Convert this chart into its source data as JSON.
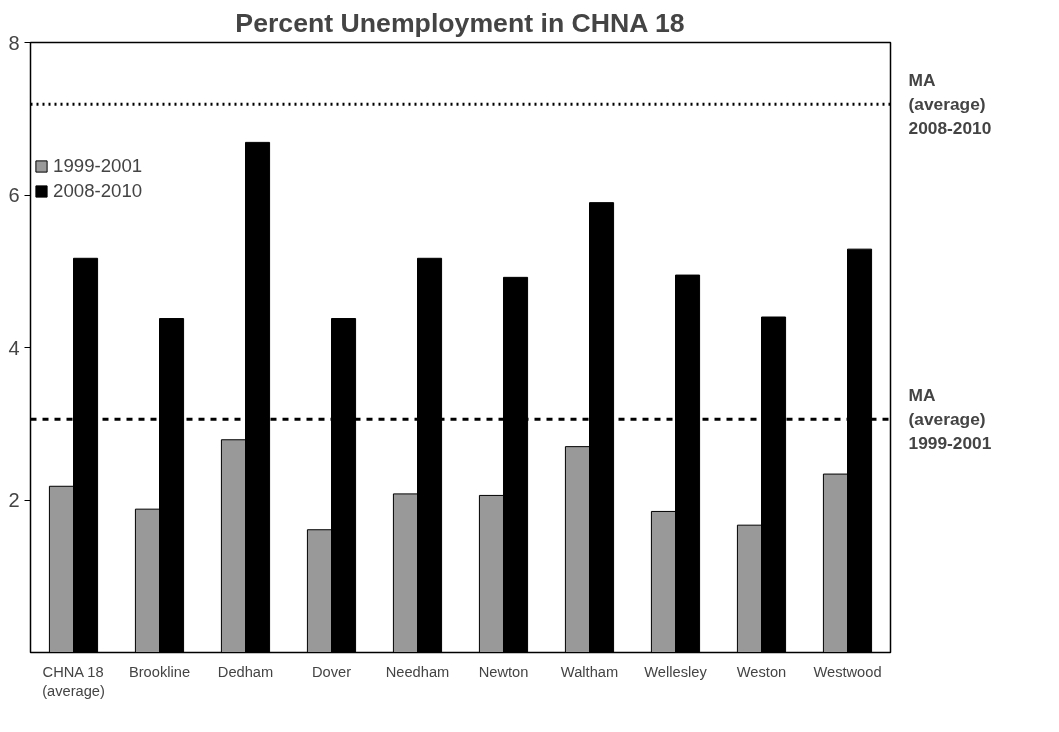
{
  "chart_data": {
    "type": "bar",
    "title": "Percent Unemployment in CHNA 18",
    "categories": [
      "CHNA 18\n(average)",
      "Brookline",
      "Dedham",
      "Dover",
      "Needham",
      "Newton",
      "Waltham",
      "Wellesley",
      "Weston",
      "Westwood"
    ],
    "series": [
      {
        "name": "1999-2001",
        "color": "#999999",
        "values": [
          2.18,
          1.88,
          2.79,
          1.61,
          2.08,
          2.06,
          2.7,
          1.85,
          1.67,
          2.34
        ]
      },
      {
        "name": "2008-2010",
        "color": "#000000",
        "values": [
          5.17,
          4.38,
          6.69,
          4.38,
          5.17,
          4.92,
          5.9,
          4.95,
          4.4,
          5.29
        ]
      }
    ],
    "ylim": [
      0,
      8
    ],
    "yticks": [
      2,
      4,
      6,
      8
    ],
    "grid": false,
    "legend": "top left",
    "ref_lines": [
      {
        "axis": "y",
        "value": 7.19,
        "label": "MA\n(average)\n2008-2010",
        "line_style": "dotted",
        "color": "#000000"
      },
      {
        "axis": "y",
        "value": 3.06,
        "label": "MA\n(average)\n1999-2001",
        "line_style": "dashed",
        "color": "#000000"
      }
    ]
  }
}
